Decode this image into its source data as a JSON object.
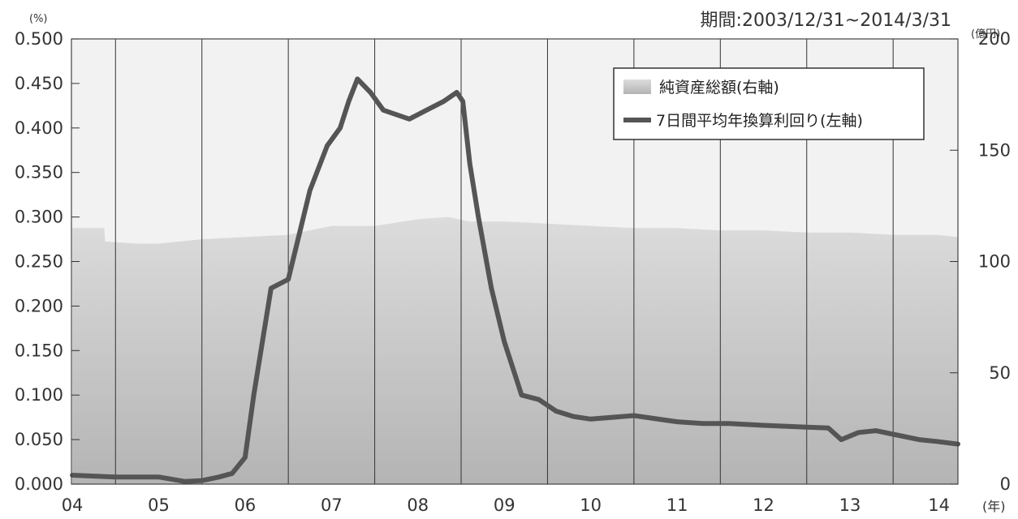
{
  "chart_data": {
    "type": "line",
    "period_label": "期間:2003/12/31~2014/3/31",
    "left_axis": {
      "unit": "(%)",
      "ylim": [
        0,
        0.5
      ],
      "ticks": [
        "0.000",
        "0.050",
        "0.100",
        "0.150",
        "0.200",
        "0.250",
        "0.300",
        "0.350",
        "0.400",
        "0.450",
        "0.500"
      ]
    },
    "right_axis": {
      "unit": "(億円)",
      "ylim": [
        0,
        200
      ],
      "ticks": [
        "0",
        "50",
        "100",
        "150",
        "200"
      ]
    },
    "x_axis": {
      "unit": "(年)",
      "ticks": [
        "04",
        "05",
        "06",
        "07",
        "08",
        "09",
        "10",
        "11",
        "12",
        "13",
        "14"
      ],
      "xlim": [
        2003.99,
        2014.25
      ]
    },
    "grid": "vertical lines at year boundaries",
    "legend": {
      "position": "top-right",
      "items": [
        {
          "label": "純資産総額(右軸)",
          "color": "#c8c8c8"
        },
        {
          "label": "7日間平均年換算利回り(左軸)",
          "color": "#555555"
        }
      ]
    },
    "series": [
      {
        "name": "純資産総額(右軸)",
        "type": "area",
        "axis": "right",
        "x": [
          2004.0,
          2004.37,
          2004.38,
          2004.75,
          2005.0,
          2005.5,
          2006.0,
          2006.5,
          2007.0,
          2007.5,
          2008.0,
          2008.35,
          2008.6,
          2009.0,
          2009.5,
          2010.0,
          2010.5,
          2011.0,
          2011.5,
          2012.0,
          2012.5,
          2013.0,
          2013.5,
          2014.0,
          2014.25
        ],
        "values": [
          115,
          115,
          109,
          108,
          108,
          110,
          111,
          112,
          116,
          116,
          119,
          120,
          118,
          118,
          117,
          116,
          115,
          115,
          114,
          114,
          113,
          113,
          112,
          112,
          111
        ]
      },
      {
        "name": "7日間平均年換算利回り(左軸)",
        "type": "line",
        "axis": "left",
        "x": [
          2004.0,
          2004.5,
          2005.0,
          2005.3,
          2005.5,
          2005.7,
          2005.85,
          2006.0,
          2006.1,
          2006.3,
          2006.5,
          2006.6,
          2006.75,
          2006.95,
          2007.1,
          2007.2,
          2007.3,
          2007.45,
          2007.6,
          2007.75,
          2007.9,
          2008.1,
          2008.3,
          2008.45,
          2008.52,
          2008.6,
          2008.7,
          2008.85,
          2009.0,
          2009.1,
          2009.2,
          2009.4,
          2009.6,
          2009.8,
          2010.0,
          2010.5,
          2011.0,
          2011.3,
          2011.6,
          2012.0,
          2012.5,
          2012.75,
          2012.9,
          2013.1,
          2013.3,
          2013.5,
          2013.8,
          2014.0,
          2014.25
        ],
        "values": [
          0.01,
          0.008,
          0.008,
          0.003,
          0.004,
          0.008,
          0.012,
          0.03,
          0.1,
          0.22,
          0.23,
          0.27,
          0.33,
          0.38,
          0.4,
          0.43,
          0.455,
          0.44,
          0.42,
          0.415,
          0.41,
          0.42,
          0.43,
          0.44,
          0.43,
          0.36,
          0.3,
          0.22,
          0.16,
          0.13,
          0.1,
          0.095,
          0.082,
          0.076,
          0.073,
          0.077,
          0.07,
          0.068,
          0.068,
          0.066,
          0.064,
          0.063,
          0.05,
          0.058,
          0.06,
          0.056,
          0.05,
          0.048,
          0.045
        ]
      }
    ]
  }
}
